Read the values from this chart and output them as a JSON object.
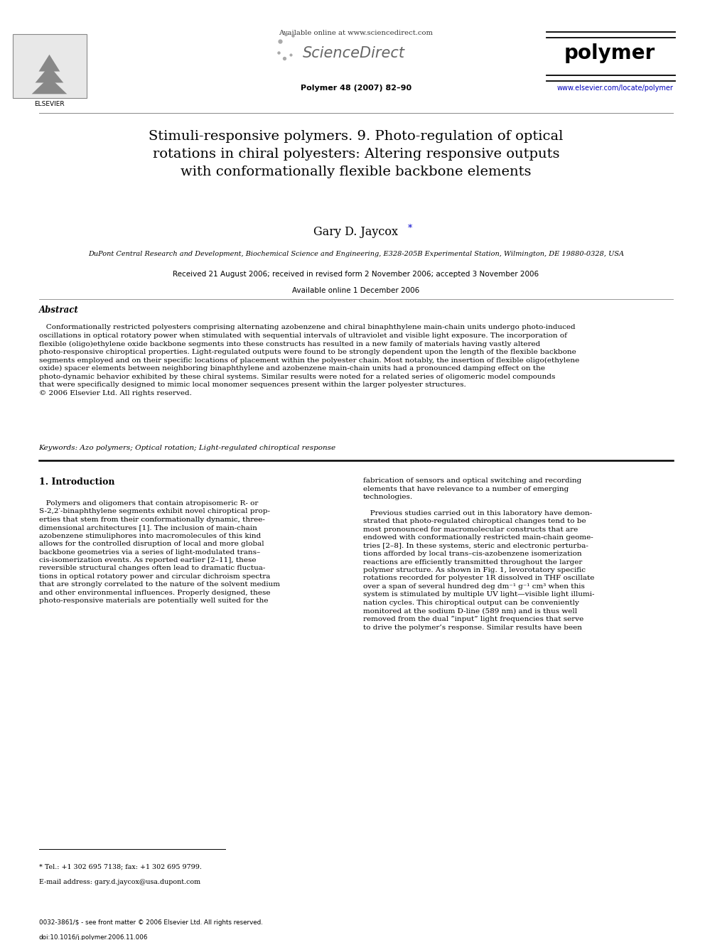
{
  "page_width": 9.92,
  "page_height": 13.23,
  "background_color": "#ffffff",
  "header": {
    "available_online_text": "Available online at www.sciencedirect.com",
    "sciencedirect_text": "ScienceDirect",
    "journal_name": "polymer",
    "journal_info": "Polymer 48 (2007) 82–90",
    "journal_url": "www.elsevier.com/locate/polymer"
  },
  "title": "Stimuli-responsive polymers. 9. Photo-regulation of optical\nrotations in chiral polyesters: Altering responsive outputs\nwith conformationally flexible backbone elements",
  "authors": "Gary D. Jaycox",
  "author_asterisk": "*",
  "affiliation": "DuPont Central Research and Development, Biochemical Science and Engineering, E328-205B Experimental Station, Wilmington, DE 19880-0328, USA",
  "received": "Received 21 August 2006; received in revised form 2 November 2006; accepted 3 November 2006",
  "available_online": "Available online 1 December 2006",
  "abstract_title": "Abstract",
  "abstract_text": "   Conformationally restricted polyesters comprising alternating azobenzene and chiral binaphthylene main-chain units undergo photo-induced\noscillations in optical rotatory power when stimulated with sequential intervals of ultraviolet and visible light exposure. The incorporation of\nflexible (oligo)ethylene oxide backbone segments into these constructs has resulted in a new family of materials having vastly altered\nphoto-responsive chiroptical properties. Light-regulated outputs were found to be strongly dependent upon the length of the flexible backbone\nsegments employed and on their specific locations of placement within the polyester chain. Most notably, the insertion of flexible oligo(ethylene\noxide) spacer elements between neighboring binaphthylene and azobenzene main-chain units had a pronounced damping effect on the\nphoto-dynamic behavior exhibited by these chiral systems. Similar results were noted for a related series of oligomeric model compounds\nthat were specifically designed to mimic local monomer sequences present within the larger polyester structures.\n© 2006 Elsevier Ltd. All rights reserved.",
  "keywords": "Keywords: Azo polymers; Optical rotation; Light-regulated chiroptical response",
  "section1_title": "1. Introduction",
  "section1_col1": "   Polymers and oligomers that contain atropisomeric R- or\nS-2,2′-binaphthylene segments exhibit novel chiroptical prop-\nerties that stem from their conformationally dynamic, three-\ndimensional architectures [1]. The inclusion of main-chain\nazobenzene stimuliphores into macromolecules of this kind\nallows for the controlled disruption of local and more global\nbackbone geometries via a series of light-modulated trans–\ncis-isomerization events. As reported earlier [2–11], these\nreversible structural changes often lead to dramatic fluctua-\ntions in optical rotatory power and circular dichroism spectra\nthat are strongly correlated to the nature of the solvent medium\nand other environmental influences. Properly designed, these\nphoto-responsive materials are potentially well suited for the",
  "section1_col2": "fabrication of sensors and optical switching and recording\nelements that have relevance to a number of emerging\ntechnologies.\n\n   Previous studies carried out in this laboratory have demon-\nstrated that photo-regulated chiroptical changes tend to be\nmost pronounced for macromolecular constructs that are\nendowed with conformationally restricted main-chain geome-\ntries [2–8]. In these systems, steric and electronic perturba-\ntions afforded by local trans–cis-azobenzene isomerization\nreactions are efficiently transmitted throughout the larger\npolymer structure. As shown in Fig. 1, levorotatory specific\nrotations recorded for polyester 1R dissolved in THF oscillate\nover a span of several hundred deg dm⁻¹ g⁻¹ cm³ when this\nsystem is stimulated by multiple UV light—visible light illumi-\nnation cycles. This chiroptical output can be conveniently\nmonitored at the sodium D-line (589 nm) and is thus well\nremoved from the dual “input” light frequencies that serve\nto drive the polymer’s response. Similar results have been",
  "footnote_tel": "* Tel.: +1 302 695 7138; fax: +1 302 695 9799.",
  "footnote_email": "E-mail address: gary.d.jaycox@usa.dupont.com",
  "footer_issn": "0032-3861/$ - see front matter © 2006 Elsevier Ltd. All rights reserved.",
  "footer_doi": "doi:10.1016/j.polymer.2006.11.006"
}
